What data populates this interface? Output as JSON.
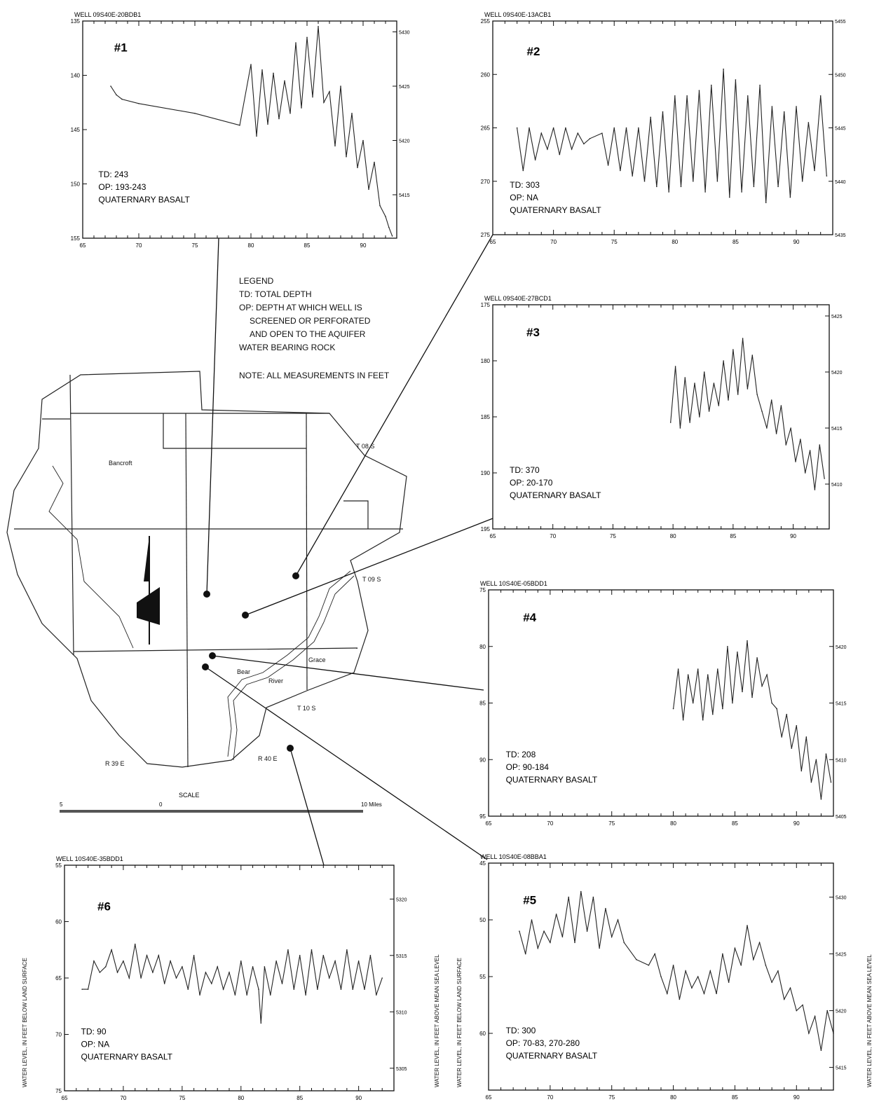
{
  "legend": {
    "title": "LEGEND",
    "lines": [
      "TD: TOTAL DEPTH",
      "OP: DEPTH AT WHICH WELL IS",
      "SCREENED OR PERFORATED",
      "AND OPEN TO THE AQUIFER",
      "WATER BEARING ROCK"
    ],
    "note": "NOTE: ALL MEASUREMENTS IN FEET"
  },
  "map": {
    "places": [
      "Bancroft",
      "Grace",
      "Bear",
      "River"
    ],
    "townships": [
      "T 08 S",
      "T 09 S",
      "T 10 S"
    ],
    "ranges": [
      "R 39 E",
      "R 40 E"
    ],
    "scale_title": "SCALE",
    "scale_ticks": [
      "5",
      "0",
      "10 Miles"
    ]
  },
  "axis_titles": {
    "left": "WATER LEVEL, IN FEET BELOW LAND SURFACE",
    "right": "WATER LEVEL, IN FEET ABOVE MEAN SEA LEVEL"
  },
  "chart_data": [
    {
      "type": "line",
      "number": "#1",
      "title": "WELL 09S40E-20BDB1",
      "td": "TD: 243",
      "op": "OP: 193-243",
      "geology": "QUATERNARY BASALT",
      "x_ticks": [
        65,
        70,
        75,
        80,
        85,
        90
      ],
      "xlim": [
        65,
        93
      ],
      "ylim": [
        135,
        155
      ],
      "y_ticks": [
        135,
        140,
        145,
        150,
        155
      ],
      "y_tick_labels": [
        "135",
        "140",
        "145",
        "150",
        "155"
      ],
      "right_ticks": [
        5415,
        5420,
        5425,
        5430
      ],
      "right_tick_labels": [
        "5415",
        "5420",
        "5425",
        "5430"
      ],
      "right_offset": 5566,
      "x": [
        67.5,
        68.0,
        68.5,
        70.0,
        75.0,
        79.0,
        80.0,
        80.5,
        81.0,
        81.5,
        82.0,
        82.5,
        83.0,
        83.5,
        84.0,
        84.5,
        85.0,
        85.5,
        86.0,
        86.5,
        87.0,
        87.5,
        88.0,
        88.5,
        89.0,
        89.5,
        90.0,
        90.5,
        91.0,
        91.5,
        92.0,
        92.3,
        92.6
      ],
      "y": [
        141.0,
        141.8,
        142.2,
        142.6,
        143.5,
        144.6,
        139.0,
        145.6,
        139.5,
        144.5,
        139.8,
        144.0,
        140.5,
        143.5,
        137.0,
        143.0,
        136.5,
        142.0,
        135.5,
        142.5,
        141.5,
        146.5,
        141.0,
        147.5,
        143.5,
        148.5,
        146.0,
        150.5,
        148.0,
        152.0,
        153.0,
        154.0,
        154.8
      ]
    },
    {
      "type": "line",
      "number": "#2",
      "title": "WELL 09S40E-13ACB1",
      "td": "TD: 303",
      "op": "OP: NA",
      "geology": "QUATERNARY BASALT",
      "x_ticks": [
        65,
        70,
        75,
        80,
        85,
        90
      ],
      "xlim": [
        65,
        93
      ],
      "ylim": [
        255,
        275
      ],
      "y_ticks": [
        255,
        260,
        265,
        270,
        275
      ],
      "y_tick_labels": [
        "255",
        "260",
        "265",
        "270",
        "275"
      ],
      "right_ticks": [
        5435,
        5440,
        5445,
        5450,
        5455
      ],
      "right_tick_labels": [
        "5435",
        "5440",
        "5445",
        "5450",
        "5455"
      ],
      "right_offset": 5710,
      "x": [
        67.0,
        67.5,
        68.0,
        68.5,
        69.0,
        69.5,
        70.0,
        70.5,
        71.0,
        71.5,
        72.0,
        72.5,
        73.0,
        74.0,
        74.5,
        75.0,
        75.5,
        76.0,
        76.5,
        77.0,
        77.5,
        78.0,
        78.5,
        79.0,
        79.5,
        80.0,
        80.5,
        81.0,
        81.5,
        82.0,
        82.5,
        83.0,
        83.5,
        84.0,
        84.5,
        85.0,
        85.5,
        86.0,
        86.5,
        87.0,
        87.5,
        88.0,
        88.5,
        89.0,
        89.5,
        90.0,
        90.5,
        91.0,
        91.5,
        92.0,
        92.5
      ],
      "y": [
        265.0,
        269.0,
        265.0,
        268.0,
        265.5,
        267.0,
        265.0,
        267.5,
        265.0,
        267.0,
        265.5,
        266.5,
        266.0,
        265.5,
        268.5,
        265.0,
        269.0,
        265.0,
        269.5,
        265.0,
        270.0,
        264.0,
        270.5,
        263.5,
        271.0,
        262.0,
        270.5,
        262.0,
        270.0,
        261.5,
        271.0,
        261.0,
        270.0,
        259.5,
        271.5,
        260.5,
        271.0,
        262.0,
        270.5,
        261.0,
        272.0,
        263.0,
        270.5,
        263.5,
        271.5,
        263.0,
        270.0,
        264.5,
        269.0,
        262.0,
        269.5
      ]
    },
    {
      "type": "line",
      "number": "#3",
      "title": "WELL 09S40E-27BCD1",
      "td": "TD: 370",
      "op": "OP: 20-170",
      "geology": "QUATERNARY BASALT",
      "x_ticks": [
        65,
        70,
        75,
        80,
        85,
        90
      ],
      "xlim": [
        65,
        93
      ],
      "ylim": [
        175,
        195
      ],
      "y_ticks": [
        175,
        180,
        185,
        190,
        195
      ],
      "y_tick_labels": [
        "175",
        "180",
        "185",
        "190",
        "195"
      ],
      "right_ticks": [
        5410,
        5415,
        5420,
        5425
      ],
      "right_tick_labels": [
        "5410",
        "5415",
        "5420",
        "5425"
      ],
      "right_offset": 5601,
      "x": [
        79.8,
        80.2,
        80.6,
        81.0,
        81.4,
        81.8,
        82.2,
        82.6,
        83.0,
        83.4,
        83.8,
        84.2,
        84.6,
        85.0,
        85.4,
        85.8,
        86.2,
        86.6,
        87.0,
        87.4,
        87.8,
        88.2,
        88.6,
        89.0,
        89.4,
        89.8,
        90.2,
        90.6,
        91.0,
        91.4,
        91.8,
        92.2,
        92.6
      ],
      "y": [
        185.5,
        180.5,
        186.0,
        181.5,
        185.5,
        182.0,
        185.0,
        181.0,
        184.5,
        182.0,
        184.0,
        180.0,
        183.5,
        179.0,
        183.0,
        178.0,
        182.5,
        179.5,
        183.0,
        184.5,
        186.0,
        183.5,
        186.5,
        184.0,
        187.5,
        186.0,
        189.0,
        187.0,
        190.0,
        188.0,
        191.5,
        187.5,
        190.5
      ]
    },
    {
      "type": "line",
      "number": "#4",
      "title": "WELL 10S40E-05BDD1",
      "td": "TD: 208",
      "op": "OP: 90-184",
      "geology": "QUATERNARY BASALT",
      "x_ticks": [
        65,
        70,
        75,
        80,
        85,
        90
      ],
      "xlim": [
        65,
        93
      ],
      "ylim": [
        75,
        95
      ],
      "y_ticks": [
        75,
        80,
        85,
        90,
        95
      ],
      "y_tick_labels": [
        "75",
        "80",
        "85",
        "90",
        "95"
      ],
      "right_ticks": [
        5405,
        5410,
        5415,
        5420
      ],
      "right_tick_labels": [
        "5405",
        "5410",
        "5415",
        "5420"
      ],
      "right_offset": 5500,
      "x": [
        80.0,
        80.4,
        80.8,
        81.2,
        81.6,
        82.0,
        82.4,
        82.8,
        83.2,
        83.6,
        84.0,
        84.4,
        84.8,
        85.2,
        85.6,
        86.0,
        86.4,
        86.8,
        87.2,
        87.6,
        88.0,
        88.4,
        88.8,
        89.2,
        89.6,
        90.0,
        90.4,
        90.8,
        91.2,
        91.6,
        92.0,
        92.4,
        92.8
      ],
      "y": [
        85.5,
        82.0,
        86.5,
        82.5,
        85.0,
        82.0,
        86.5,
        82.5,
        86.0,
        82.0,
        85.5,
        80.0,
        85.0,
        80.5,
        84.0,
        79.5,
        84.5,
        81.0,
        83.5,
        82.5,
        85.0,
        85.5,
        88.0,
        86.0,
        89.0,
        87.0,
        91.0,
        88.0,
        92.0,
        90.0,
        93.5,
        89.5,
        92.0
      ]
    },
    {
      "type": "line",
      "number": "#5",
      "title": "WELL 10S40E-08BBA1",
      "td": "TD: 300",
      "op": "OP: 70-83, 270-280",
      "geology": "QUATERNARY BASALT",
      "x_ticks": [
        65,
        70,
        75,
        80,
        85,
        90
      ],
      "xlim": [
        65,
        93
      ],
      "ylim": [
        45,
        65
      ],
      "y_ticks": [
        45,
        50,
        55,
        60
      ],
      "y_tick_labels": [
        "45",
        "50",
        "55",
        "60"
      ],
      "right_ticks": [
        5415,
        5420,
        5425,
        5430
      ],
      "right_tick_labels": [
        "5415",
        "5420",
        "5425",
        "5430"
      ],
      "right_offset": 5478,
      "x": [
        67.5,
        68.0,
        68.5,
        69.0,
        69.5,
        70.0,
        70.5,
        71.0,
        71.5,
        72.0,
        72.5,
        73.0,
        73.5,
        74.0,
        74.5,
        75.0,
        75.5,
        76.0,
        77.0,
        78.0,
        78.5,
        79.0,
        79.5,
        80.0,
        80.5,
        81.0,
        81.5,
        82.0,
        82.5,
        83.0,
        83.5,
        84.0,
        84.5,
        85.0,
        85.5,
        86.0,
        86.5,
        87.0,
        87.5,
        88.0,
        88.5,
        89.0,
        89.5,
        90.0,
        90.5,
        91.0,
        91.5,
        92.0,
        92.5,
        93.0
      ],
      "y": [
        51.0,
        53.0,
        50.0,
        52.5,
        51.0,
        52.0,
        49.5,
        51.5,
        48.0,
        52.0,
        47.5,
        51.0,
        48.0,
        52.5,
        49.0,
        51.5,
        50.0,
        52.0,
        53.5,
        54.0,
        53.0,
        55.0,
        56.5,
        54.0,
        57.0,
        54.5,
        56.0,
        55.0,
        56.5,
        54.5,
        56.5,
        53.0,
        55.5,
        52.5,
        54.0,
        50.5,
        53.5,
        52.0,
        54.0,
        55.5,
        54.5,
        57.0,
        56.0,
        58.0,
        57.5,
        60.0,
        58.5,
        61.5,
        58.0,
        60.0
      ]
    },
    {
      "type": "line",
      "number": "#6",
      "title": "WELL 10S40E-35BDD1",
      "td": "TD: 90",
      "op": "OP: NA",
      "geology": "QUATERNARY BASALT",
      "x_ticks": [
        65,
        70,
        75,
        80,
        85,
        90
      ],
      "xlim": [
        65,
        93
      ],
      "ylim": [
        55,
        75
      ],
      "y_ticks": [
        55,
        60,
        65,
        70,
        75
      ],
      "y_tick_labels": [
        "55",
        "60",
        "65",
        "70",
        "75"
      ],
      "right_ticks": [
        5305,
        5310,
        5315,
        5320
      ],
      "right_tick_labels": [
        "5305",
        "5310",
        "5315",
        "5320"
      ],
      "right_offset": 5378,
      "x": [
        66.5,
        67.0,
        67.5,
        68.0,
        68.5,
        69.0,
        69.5,
        70.0,
        70.5,
        71.0,
        71.5,
        72.0,
        72.5,
        73.0,
        73.5,
        74.0,
        74.5,
        75.0,
        75.5,
        76.0,
        76.5,
        77.0,
        77.5,
        78.0,
        78.5,
        79.0,
        79.5,
        80.0,
        80.5,
        81.0,
        81.5,
        81.7,
        82.0,
        82.5,
        83.0,
        83.5,
        84.0,
        84.5,
        85.0,
        85.5,
        86.0,
        86.5,
        87.0,
        87.5,
        88.0,
        88.5,
        89.0,
        89.5,
        90.0,
        90.5,
        91.0,
        91.5,
        92.0
      ],
      "y": [
        66.0,
        66.0,
        63.5,
        64.5,
        64.0,
        62.5,
        64.5,
        63.5,
        65.0,
        62.0,
        65.0,
        63.0,
        64.5,
        63.0,
        65.5,
        63.5,
        65.0,
        64.0,
        66.0,
        63.0,
        66.5,
        64.5,
        65.5,
        64.0,
        66.0,
        64.5,
        66.5,
        63.5,
        66.5,
        64.0,
        66.0,
        69.0,
        64.0,
        66.5,
        63.5,
        65.5,
        62.5,
        66.0,
        63.0,
        66.5,
        62.5,
        66.0,
        63.0,
        65.0,
        63.5,
        66.0,
        62.5,
        66.0,
        63.5,
        66.0,
        63.0,
        66.5,
        65.0
      ]
    }
  ]
}
